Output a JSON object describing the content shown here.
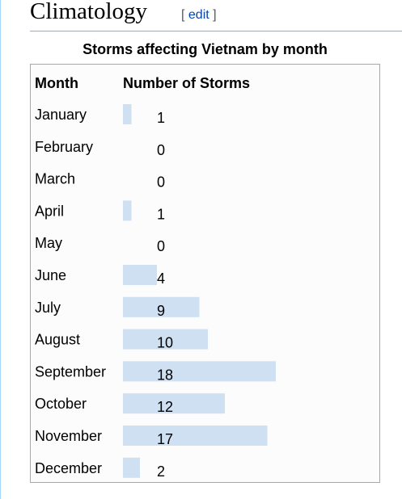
{
  "section": {
    "title": "Climatology",
    "edit_open": "[ ",
    "edit_label": "edit",
    "edit_close": " ]"
  },
  "chart_data": {
    "type": "bar",
    "title": "Storms affecting Vietnam by month",
    "xlabel": "Month",
    "ylabel": "Number of Storms",
    "categories": [
      "January",
      "February",
      "March",
      "April",
      "May",
      "June",
      "July",
      "August",
      "September",
      "October",
      "November",
      "December"
    ],
    "values": [
      1,
      0,
      0,
      1,
      0,
      4,
      9,
      10,
      18,
      12,
      17,
      2
    ],
    "bar_color": "#cee0f2",
    "orientation": "horizontal",
    "grid": false,
    "legend": false
  }
}
